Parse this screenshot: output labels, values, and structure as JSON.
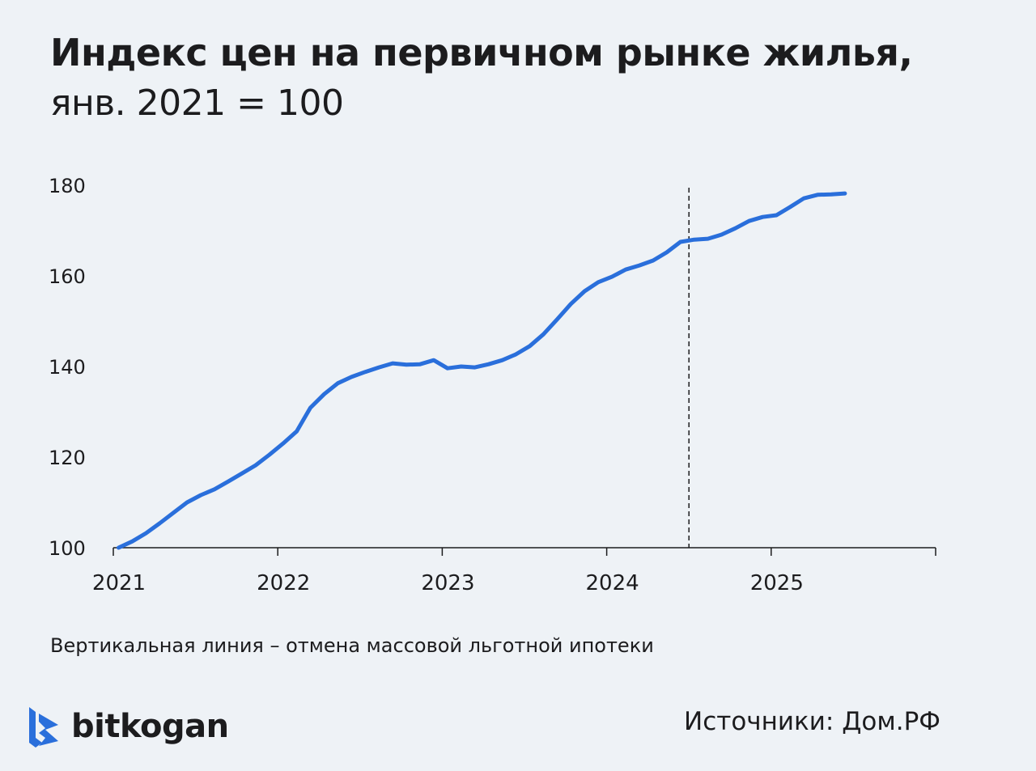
{
  "chart_data": {
    "type": "line",
    "title": "Индекс цен на первичном рынке жилья,",
    "subtitle": "янв. 2021 = 100",
    "xlabel": "",
    "ylabel": "",
    "xlim": [
      "2021-01",
      "2026-01"
    ],
    "ylim": [
      100,
      180
    ],
    "x_ticks": [
      "2021",
      "2022",
      "2023",
      "2024",
      "2025"
    ],
    "y_ticks": [
      100,
      120,
      140,
      160,
      180
    ],
    "grid": false,
    "line_color": "#2a6fdb",
    "x": [
      "2021-01",
      "2021-02",
      "2021-03",
      "2021-04",
      "2021-05",
      "2021-06",
      "2021-07",
      "2021-08",
      "2021-09",
      "2021-10",
      "2021-11",
      "2021-12",
      "2022-01",
      "2022-02",
      "2022-03",
      "2022-04",
      "2022-05",
      "2022-06",
      "2022-07",
      "2022-08",
      "2022-09",
      "2022-10",
      "2022-11",
      "2022-12",
      "2023-01",
      "2023-02",
      "2023-03",
      "2023-04",
      "2023-05",
      "2023-06",
      "2023-07",
      "2023-08",
      "2023-09",
      "2023-10",
      "2023-11",
      "2023-12",
      "2024-01",
      "2024-02",
      "2024-03",
      "2024-04",
      "2024-05",
      "2024-06",
      "2024-07",
      "2024-08",
      "2024-09",
      "2024-10",
      "2024-11",
      "2024-12",
      "2025-01",
      "2025-02",
      "2025-03",
      "2025-04",
      "2025-05",
      "2025-06"
    ],
    "values": [
      100,
      101.4,
      103.2,
      105.4,
      107.7,
      110,
      111.6,
      112.9,
      114.6,
      116.4,
      118.2,
      120.5,
      123,
      125.7,
      130.9,
      133.9,
      136.3,
      137.7,
      138.8,
      139.8,
      140.7,
      140.4,
      140.5,
      141.4,
      139.6,
      140,
      139.8,
      140.5,
      141.4,
      142.7,
      144.5,
      147.1,
      150.4,
      153.8,
      156.6,
      158.6,
      159.8,
      161.4,
      162.3,
      163.4,
      165.2,
      167.5,
      168,
      168.2,
      169.1,
      170.5,
      172.1,
      173,
      173.4,
      175.2,
      177.1,
      177.9,
      178,
      178.2
    ],
    "annotations": [
      {
        "type": "vertical-dashed-line",
        "x": "2024-07"
      }
    ],
    "note": "Вертикальная линия – отмена массовой льготной ипотеки"
  },
  "footer": {
    "brand": "bitkogan",
    "brand_color": "#2a6fdb",
    "source": "Источники: Дом.РФ"
  }
}
